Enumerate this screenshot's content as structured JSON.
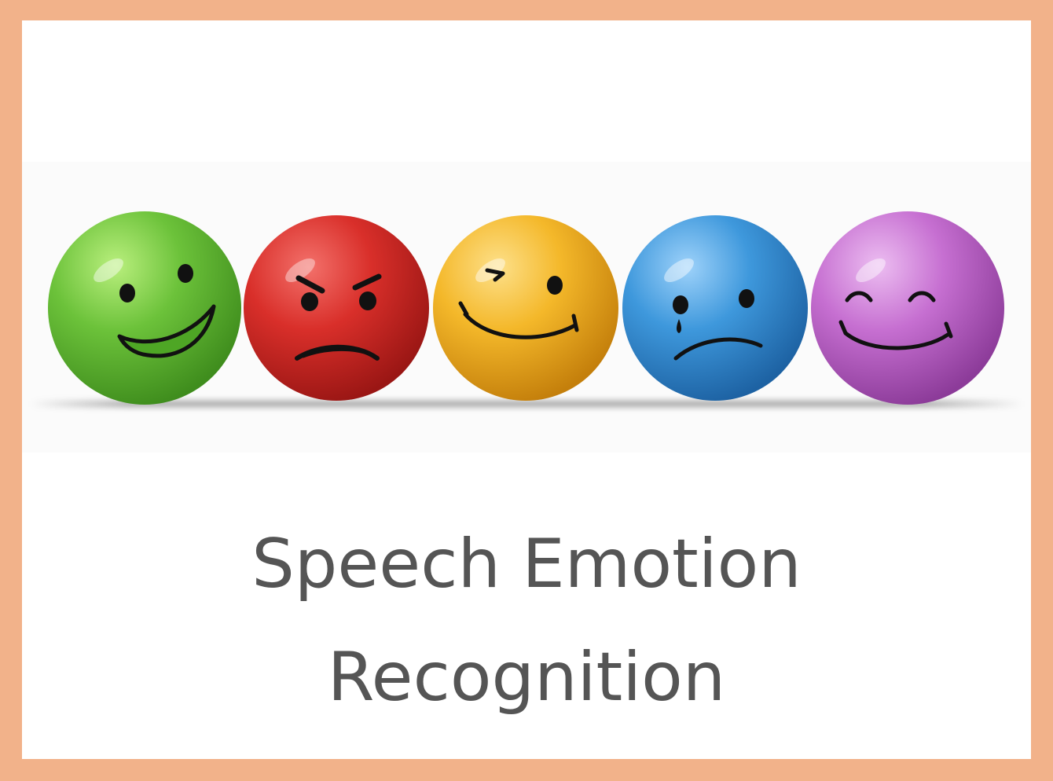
{
  "title": {
    "line1": "Speech Emotion",
    "line2": "Recognition"
  },
  "colors": {
    "frame": "#f2b28a",
    "card": "#ffffff",
    "text": "#555555",
    "green": "#6cc23a",
    "red": "#d92f2a",
    "yellow": "#f4b82a",
    "blue": "#3e98dc",
    "purple": "#c66fd1"
  },
  "faces": [
    {
      "emotion": "happy",
      "color": "green"
    },
    {
      "emotion": "angry",
      "color": "red"
    },
    {
      "emotion": "wink",
      "color": "yellow"
    },
    {
      "emotion": "sad",
      "color": "blue"
    },
    {
      "emotion": "content",
      "color": "purple"
    }
  ]
}
